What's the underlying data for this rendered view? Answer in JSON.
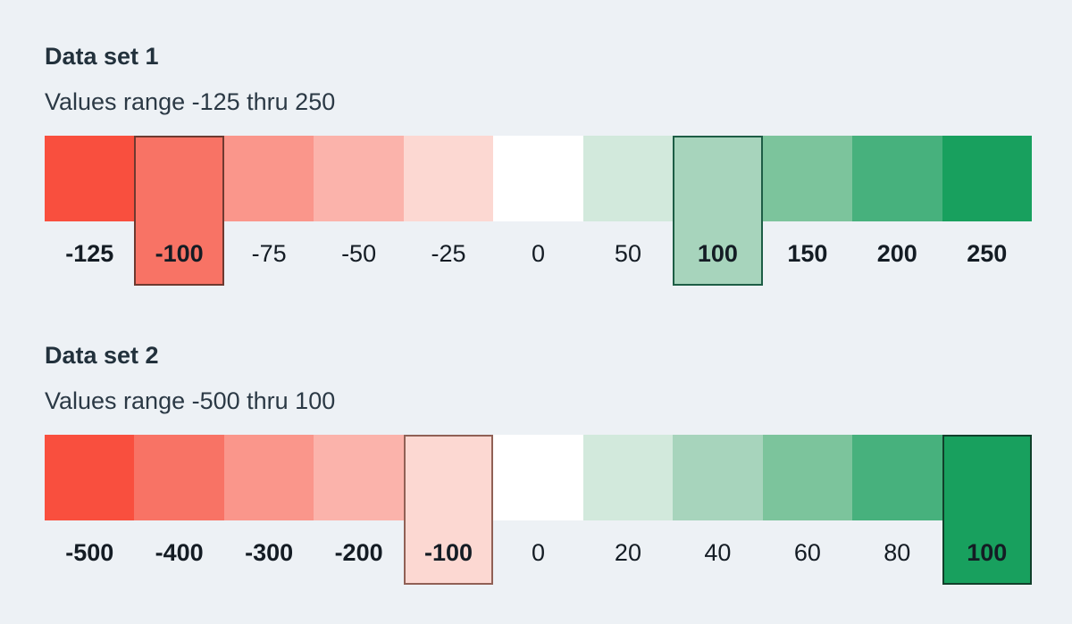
{
  "page": {
    "background_color": "#edf1f5",
    "title_color": "#22313c",
    "label_color": "#141c24"
  },
  "chart_data": [
    {
      "type": "heatmap",
      "title": "Data set 1",
      "subtitle": "Values range -125 thru 250",
      "range": [
        -125,
        250
      ],
      "legend_position": "none",
      "grid": false,
      "highlighted_values": [
        -100,
        100
      ],
      "cells": [
        {
          "value": -125,
          "label": "-125",
          "color": "#f94f3e",
          "bold": true,
          "highlighted": false,
          "border_color": null
        },
        {
          "value": -100,
          "label": "-100",
          "color": "#f87365",
          "bold": true,
          "highlighted": true,
          "border_color": "#6e3a30"
        },
        {
          "value": -75,
          "label": "-75",
          "color": "#fa968b",
          "bold": false,
          "highlighted": false,
          "border_color": null
        },
        {
          "value": -50,
          "label": "-50",
          "color": "#fbb3ab",
          "bold": false,
          "highlighted": false,
          "border_color": null
        },
        {
          "value": -25,
          "label": "-25",
          "color": "#fcd8d2",
          "bold": false,
          "highlighted": false,
          "border_color": null
        },
        {
          "value": 0,
          "label": "0",
          "color": "#ffffff",
          "bold": false,
          "highlighted": false,
          "border_color": null
        },
        {
          "value": 50,
          "label": "50",
          "color": "#d2e9dc",
          "bold": false,
          "highlighted": false,
          "border_color": null
        },
        {
          "value": 100,
          "label": "100",
          "color": "#a7d4bc",
          "bold": true,
          "highlighted": true,
          "border_color": "#1d5d45"
        },
        {
          "value": 150,
          "label": "150",
          "color": "#7cc49c",
          "bold": true,
          "highlighted": false,
          "border_color": null
        },
        {
          "value": 200,
          "label": "200",
          "color": "#47b17d",
          "bold": true,
          "highlighted": false,
          "border_color": null
        },
        {
          "value": 250,
          "label": "250",
          "color": "#18a05e",
          "bold": true,
          "highlighted": false,
          "border_color": null
        }
      ]
    },
    {
      "type": "heatmap",
      "title": "Data set 2",
      "subtitle": "Values range -500 thru 100",
      "range": [
        -500,
        100
      ],
      "legend_position": "none",
      "grid": false,
      "highlighted_values": [
        -100,
        100
      ],
      "cells": [
        {
          "value": -500,
          "label": "-500",
          "color": "#f94f3e",
          "bold": true,
          "highlighted": false,
          "border_color": null
        },
        {
          "value": -400,
          "label": "-400",
          "color": "#f87365",
          "bold": true,
          "highlighted": false,
          "border_color": null
        },
        {
          "value": -300,
          "label": "-300",
          "color": "#fa968b",
          "bold": true,
          "highlighted": false,
          "border_color": null
        },
        {
          "value": -200,
          "label": "-200",
          "color": "#fbb3ab",
          "bold": true,
          "highlighted": false,
          "border_color": null
        },
        {
          "value": -100,
          "label": "-100",
          "color": "#fcd8d2",
          "bold": true,
          "highlighted": true,
          "border_color": "#906055"
        },
        {
          "value": 0,
          "label": "0",
          "color": "#ffffff",
          "bold": false,
          "highlighted": false,
          "border_color": null
        },
        {
          "value": 20,
          "label": "20",
          "color": "#d2e9dc",
          "bold": false,
          "highlighted": false,
          "border_color": null
        },
        {
          "value": 40,
          "label": "40",
          "color": "#a7d4bc",
          "bold": false,
          "highlighted": false,
          "border_color": null
        },
        {
          "value": 60,
          "label": "60",
          "color": "#7cc49c",
          "bold": false,
          "highlighted": false,
          "border_color": null
        },
        {
          "value": 80,
          "label": "80",
          "color": "#47b17d",
          "bold": false,
          "highlighted": false,
          "border_color": null
        },
        {
          "value": 100,
          "label": "100",
          "color": "#18a05e",
          "bold": true,
          "highlighted": true,
          "border_color": "#11402b"
        }
      ]
    }
  ]
}
